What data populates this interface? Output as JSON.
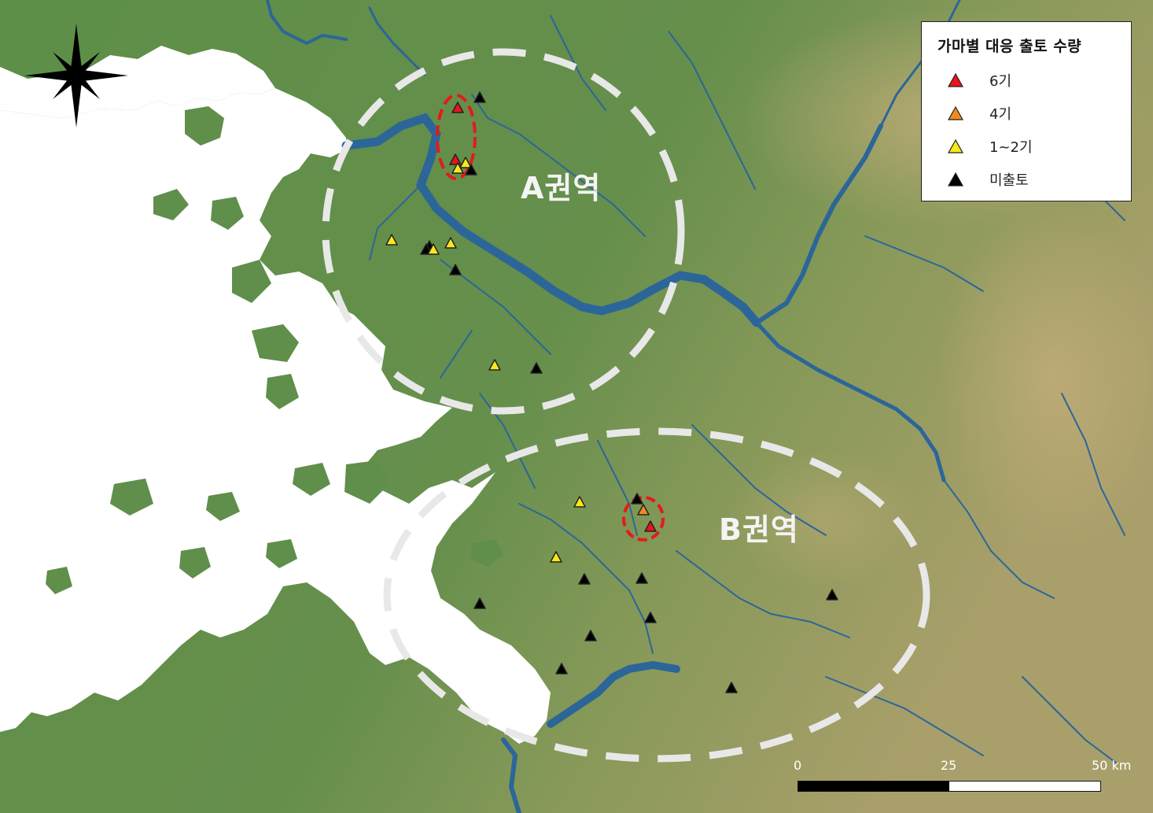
{
  "legend": {
    "title": "가마별 대응 출토 수량",
    "items": [
      {
        "label": "6기",
        "color": "#e8141c"
      },
      {
        "label": "4기",
        "color": "#f08c1c"
      },
      {
        "label": "1~2기",
        "color": "#f7e81a"
      },
      {
        "label": "미출토",
        "color": "#000000"
      }
    ]
  },
  "regions": {
    "a_label": "A권역",
    "b_label": "B권역"
  },
  "scale": {
    "tick_0": "0",
    "tick_mid": "25",
    "tick_end": "50 km"
  },
  "colors": {
    "land": "#5f8f4a",
    "highland": "#a9a469",
    "water": "#2c6699",
    "sea": "#ffffff"
  }
}
